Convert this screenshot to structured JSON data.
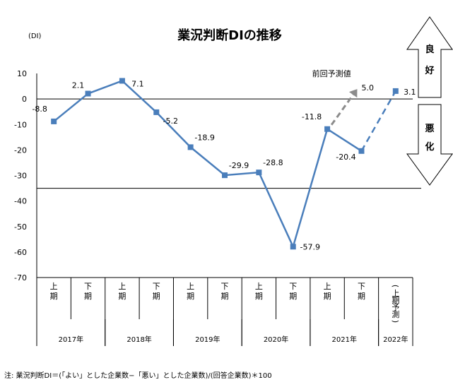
{
  "chart_data": {
    "type": "line",
    "title": "業況判断DIの推移",
    "unit_label": "(DI)",
    "ylim": [
      -70,
      10
    ],
    "yticks": [
      10,
      0,
      -10,
      -20,
      -30,
      -40,
      -50,
      -60,
      -70
    ],
    "categories": [
      {
        "period": "上期",
        "year": "2017年"
      },
      {
        "period": "下期",
        "year": "2017年"
      },
      {
        "period": "上期",
        "year": "2018年"
      },
      {
        "period": "下期",
        "year": "2018年"
      },
      {
        "period": "上期",
        "year": "2019年"
      },
      {
        "period": "下期",
        "year": "2019年"
      },
      {
        "period": "上期",
        "year": "2020年"
      },
      {
        "period": "下期",
        "year": "2020年"
      },
      {
        "period": "上期",
        "year": "2021年"
      },
      {
        "period": "下期",
        "year": "2021年"
      },
      {
        "period": "(上期予測)",
        "year": "2022年"
      }
    ],
    "years": [
      "2017年",
      "2018年",
      "2019年",
      "2020年",
      "2021年",
      "2022年"
    ],
    "series": [
      {
        "values": [
          -8.8,
          2.1,
          7.1,
          -5.2,
          -18.9,
          -29.9,
          -28.8,
          -57.9,
          -11.8,
          -20.4,
          null
        ],
        "style": "solid"
      },
      {
        "values": [
          null,
          null,
          null,
          null,
          null,
          null,
          null,
          null,
          null,
          -20.4,
          3.1
        ],
        "style": "dashed"
      }
    ],
    "data_labels": [
      "-8.8",
      "2.1",
      "7.1",
      "-5.2",
      "-18.9",
      "-29.9",
      "-28.8",
      "-57.9",
      "-11.8",
      "-20.4",
      "3.1"
    ],
    "previous_forecast": {
      "label": "前回予測値",
      "value": 5.0,
      "value_label": "5.0",
      "from_index": 8
    },
    "indicators": {
      "good": "良好",
      "bad": "悪化"
    },
    "colors": {
      "line": "#4a7ebb",
      "marker": "#4a7ebb",
      "forecast_arrow": "#8c8c8c"
    },
    "note": "注: 業況判断DI＝(「よい」とした企業数−「悪い」とした企業数)/(回答企業数)＊100"
  }
}
